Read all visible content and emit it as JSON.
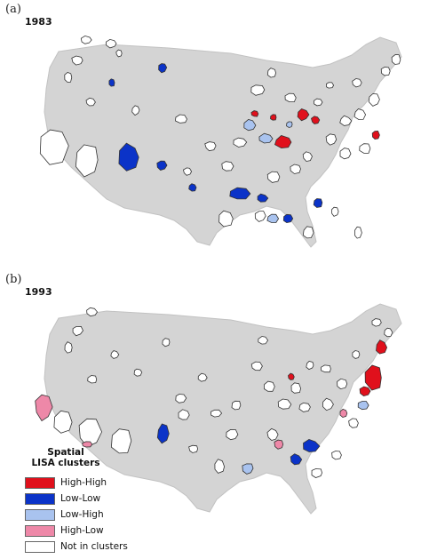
{
  "panel_a": {
    "label": "(a)",
    "year": "1983"
  },
  "panel_b": {
    "label": "(b)",
    "year": "1993"
  },
  "legend": {
    "title_line1": "Spatial",
    "title_line2": "LISA clusters",
    "items": [
      {
        "label": "High-High",
        "color": "#e0101c"
      },
      {
        "label": "Low-Low",
        "color": "#0b33c8"
      },
      {
        "label": "Low-High",
        "color": "#a9c3ef"
      },
      {
        "label": "High-Low",
        "color": "#ee88a8"
      },
      {
        "label": "Not in clusters",
        "color": "#ffffff"
      }
    ]
  },
  "colors": {
    "land": "#d4d4d4",
    "not_in_cluster": "#ffffff",
    "high_high": "#e0101c",
    "low_low": "#0b33c8",
    "low_high": "#a9c3ef",
    "high_low": "#ee88a8"
  }
}
